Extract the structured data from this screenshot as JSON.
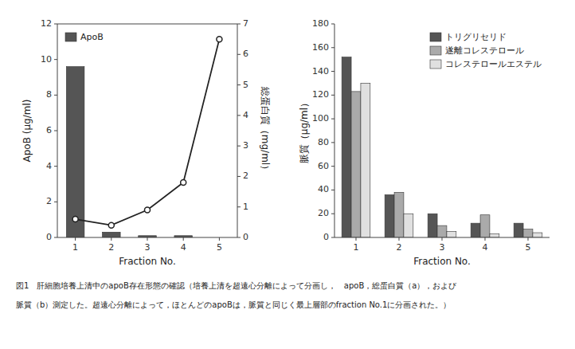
{
  "chart_data": [
    {
      "type": "bar",
      "x": [
        1,
        2,
        3,
        4,
        5
      ],
      "xlim": [
        0.5,
        5.5
      ],
      "xticks": [
        1,
        2,
        3,
        4,
        5
      ],
      "xlabel": "Fraction No.",
      "ylabel": "ApoB (μg/ml)",
      "y2label": "総蛋白質（mg/ml）",
      "ylim": [
        0,
        12
      ],
      "yticks": [
        0,
        2,
        4,
        6,
        8,
        10,
        12
      ],
      "y2lim": [
        0,
        7
      ],
      "y2ticks": [
        0,
        1,
        2,
        3,
        4,
        5,
        6,
        7
      ],
      "grid": false,
      "legend": "upper left",
      "series": [
        {
          "name": "ApoB",
          "type": "bar",
          "color": "#555555",
          "values": [
            9.6,
            0.3,
            0.1,
            0.1,
            0.0
          ]
        },
        {
          "type": "line",
          "axis": "y2",
          "color": "#222222",
          "marker": "circle",
          "line_style": "solid",
          "values": [
            0.6,
            0.4,
            0.9,
            1.8,
            6.5
          ]
        }
      ]
    },
    {
      "type": "bar",
      "x": [
        1,
        2,
        3,
        4,
        5
      ],
      "xlim": [
        0.5,
        5.5
      ],
      "xticks": [
        1,
        2,
        3,
        4,
        5
      ],
      "xlabel": "Fraction No.",
      "ylabel": "脈質（μg/ml）",
      "ylim": [
        0,
        180
      ],
      "yticks": [
        0,
        20,
        40,
        60,
        80,
        100,
        120,
        140,
        160,
        180
      ],
      "grid": false,
      "legend": "upper right",
      "series": [
        {
          "name": "トリグリセリド",
          "color": "#555555",
          "values": [
            152,
            36,
            20,
            12,
            12
          ]
        },
        {
          "name": "遂離コレステロール",
          "color": "#aaaaaa",
          "values": [
            123,
            38,
            10,
            19,
            7
          ]
        },
        {
          "name": "コレステロールエステル",
          "color": "#e0e0e0",
          "values": [
            130,
            20,
            5,
            3,
            4
          ]
        }
      ]
    }
  ],
  "caption": [
    "図1　肝細胞培養上清中のapoB存在形態の確認（培養上清を超遠心分離によって分画し，　apoB，総蛋白質（a），および",
    "脈質（b）測定した。超遠心分離によって，ほとんどのapoBは，脈質と同じく最上層部のfraction No.1に分画された。）"
  ]
}
